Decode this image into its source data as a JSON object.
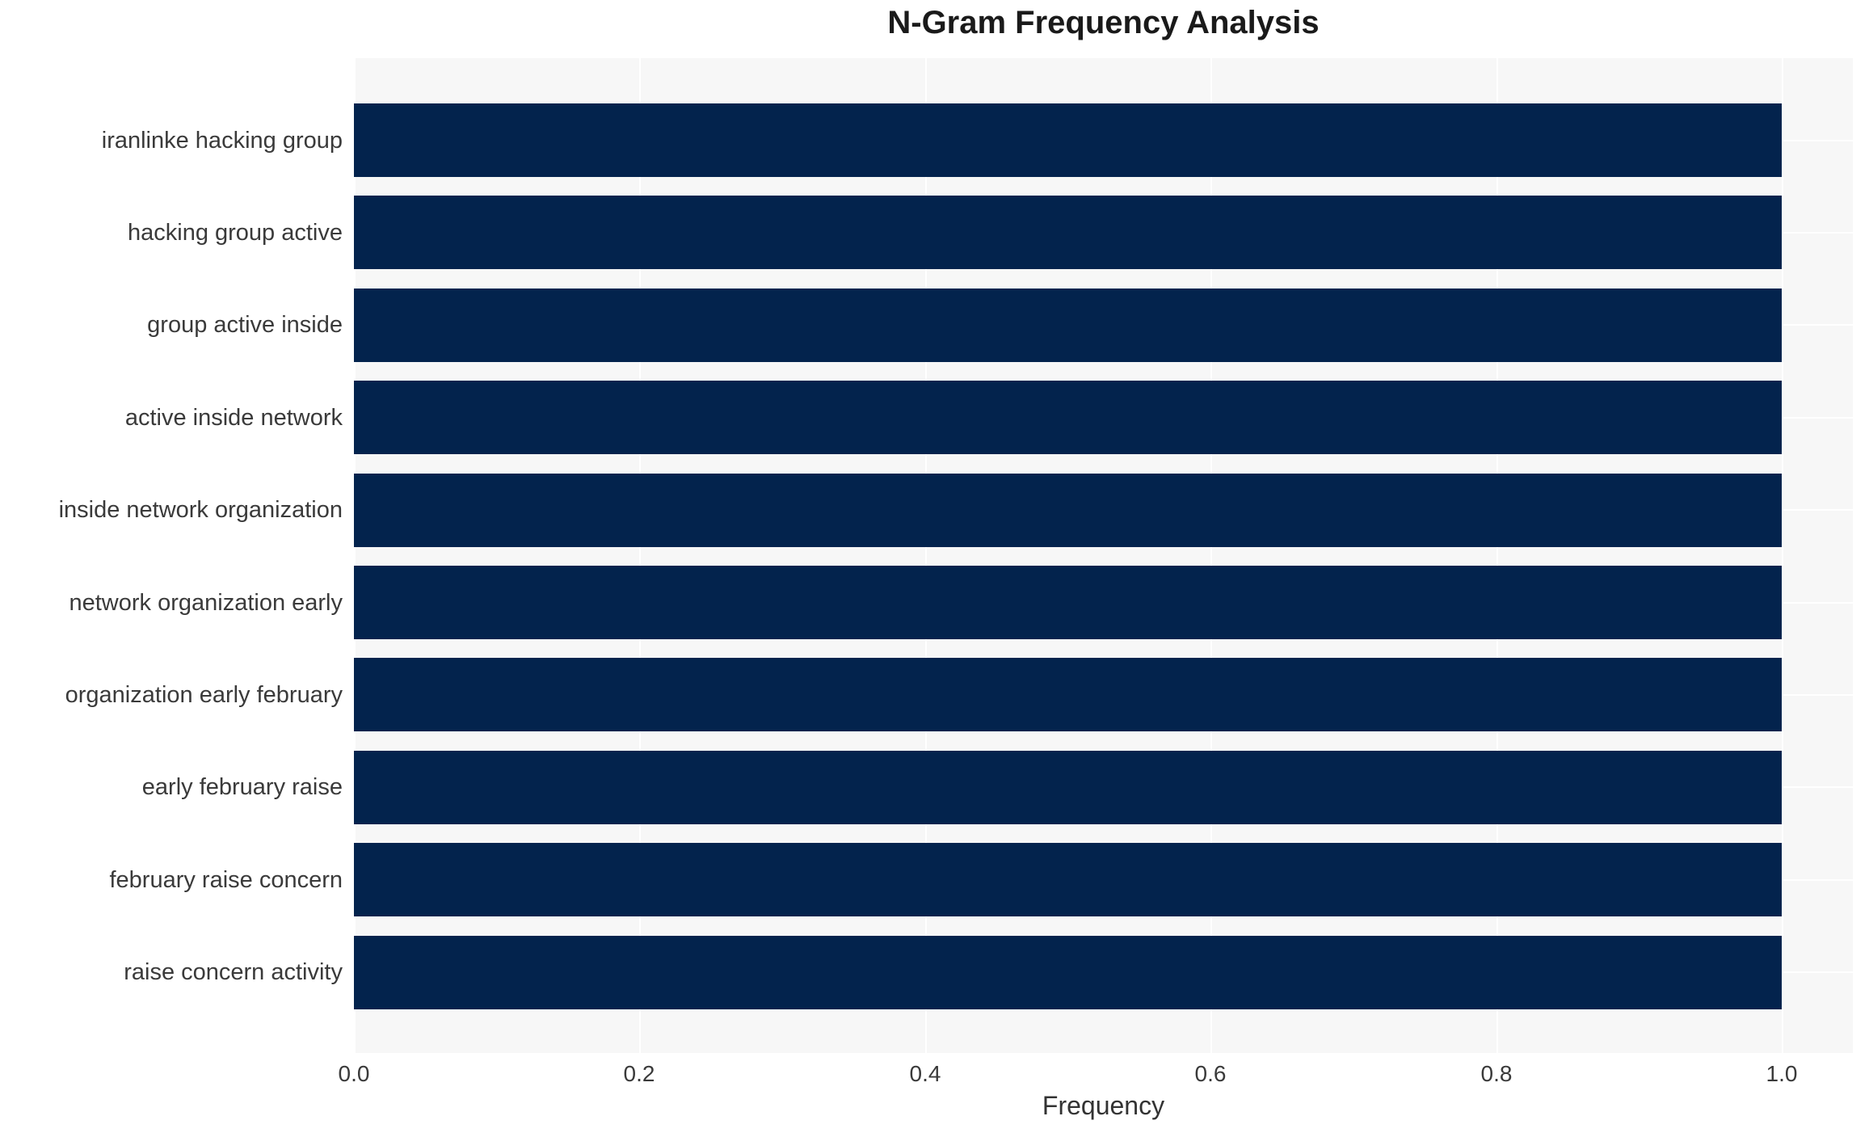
{
  "chart_data": {
    "type": "bar",
    "orientation": "horizontal",
    "title": "N-Gram Frequency Analysis",
    "categories": [
      "iranlinke hacking group",
      "hacking group active",
      "group active inside",
      "active inside network",
      "inside network organization",
      "network organization early",
      "organization early february",
      "early february raise",
      "february raise concern",
      "raise concern activity"
    ],
    "values": [
      1.0,
      1.0,
      1.0,
      1.0,
      1.0,
      1.0,
      1.0,
      1.0,
      1.0,
      1.0
    ],
    "xlabel": "Frequency",
    "ylabel": "",
    "xlim": [
      0.0,
      1.05
    ],
    "xticks": [
      0.0,
      0.2,
      0.4,
      0.6,
      0.8,
      1.0
    ],
    "xtick_labels": [
      "0.0",
      "0.2",
      "0.4",
      "0.6",
      "0.8",
      "1.0"
    ],
    "grid": true,
    "legend": false,
    "colors": {
      "bar": "#03234d",
      "plot_background": "#f7f7f7",
      "gridline": "#ffffff",
      "tick_text": "#3a3a3a",
      "title_text": "#1a1a1a"
    }
  }
}
